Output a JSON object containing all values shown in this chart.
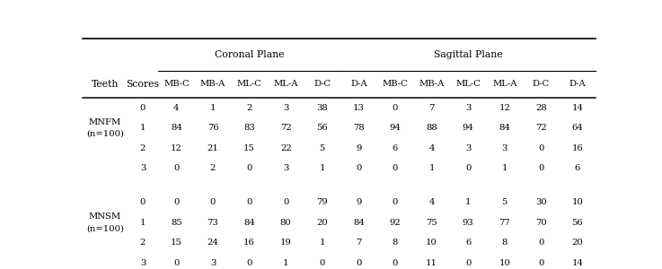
{
  "col_headers_fixed": [
    "Teeth",
    "Scores"
  ],
  "col_headers_coronal": [
    "MB-C",
    "MB-A",
    "ML-C",
    "ML-A",
    "D-C"
  ],
  "col_headers_sagittal": [
    "D-A",
    "MB-C",
    "MB-A",
    "ML-C",
    "ML-A",
    "D-C",
    "D-A"
  ],
  "row_groups": [
    {
      "label_line1": "MNFM",
      "label_line2": "(n=100)",
      "scores": [
        0,
        1,
        2,
        3
      ],
      "data": [
        [
          4,
          1,
          2,
          3,
          38,
          13,
          0,
          7,
          3,
          12,
          28,
          14
        ],
        [
          84,
          76,
          83,
          72,
          56,
          78,
          94,
          88,
          94,
          84,
          72,
          64
        ],
        [
          12,
          21,
          15,
          22,
          5,
          9,
          6,
          4,
          3,
          3,
          0,
          16
        ],
        [
          0,
          2,
          0,
          3,
          1,
          0,
          0,
          1,
          0,
          1,
          0,
          6
        ]
      ]
    },
    {
      "label_line1": "MNSM",
      "label_line2": "(n=100)",
      "scores": [
        0,
        1,
        2,
        3
      ],
      "data": [
        [
          0,
          0,
          0,
          0,
          79,
          9,
          0,
          4,
          1,
          5,
          30,
          10
        ],
        [
          85,
          73,
          84,
          80,
          20,
          84,
          92,
          75,
          93,
          77,
          70,
          56
        ],
        [
          15,
          24,
          16,
          19,
          1,
          7,
          8,
          10,
          6,
          8,
          0,
          20
        ],
        [
          0,
          3,
          0,
          1,
          0,
          0,
          0,
          11,
          0,
          10,
          0,
          14
        ]
      ]
    }
  ],
  "font_size": 7.2,
  "header_font_size": 7.8
}
